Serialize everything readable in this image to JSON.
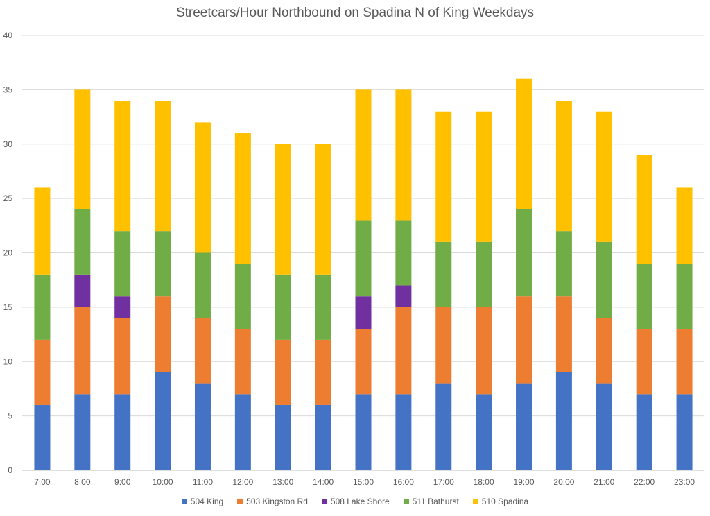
{
  "chart_data": {
    "type": "bar",
    "stacked": true,
    "title": "Streetcars/Hour Northbound on Spadina N of King Weekdays",
    "xlabel": "",
    "ylabel": "",
    "ylim": [
      0,
      40
    ],
    "yticks": [
      0,
      5,
      10,
      15,
      20,
      25,
      30,
      35,
      40
    ],
    "grid": true,
    "legend_position": "bottom",
    "categories": [
      "7:00",
      "8:00",
      "9:00",
      "10:00",
      "11:00",
      "12:00",
      "13:00",
      "14:00",
      "15:00",
      "16:00",
      "17:00",
      "18:00",
      "19:00",
      "20:00",
      "21:00",
      "22:00",
      "23:00"
    ],
    "series": [
      {
        "name": "504 King",
        "color": "#4472C4",
        "values": [
          6,
          7,
          7,
          9,
          8,
          7,
          6,
          6,
          7,
          7,
          8,
          7,
          8,
          9,
          8,
          7,
          7
        ]
      },
      {
        "name": "503 Kingston Rd",
        "color": "#ED7D31",
        "values": [
          6,
          8,
          7,
          7,
          6,
          6,
          6,
          6,
          6,
          8,
          7,
          8,
          8,
          7,
          6,
          6,
          6
        ]
      },
      {
        "name": "508 Lake Shore",
        "color": "#7030A0",
        "values": [
          0,
          3,
          2,
          0,
          0,
          0,
          0,
          0,
          3,
          2,
          0,
          0,
          0,
          0,
          0,
          0,
          0
        ]
      },
      {
        "name": "511 Bathurst",
        "color": "#70AD47",
        "values": [
          6,
          6,
          6,
          6,
          6,
          6,
          6,
          6,
          7,
          6,
          6,
          6,
          8,
          6,
          7,
          6,
          6
        ]
      },
      {
        "name": "510 Spadina",
        "color": "#FFC000",
        "values": [
          8,
          11,
          12,
          12,
          12,
          12,
          12,
          12,
          12,
          12,
          12,
          12,
          12,
          12,
          12,
          10,
          7
        ]
      }
    ]
  }
}
